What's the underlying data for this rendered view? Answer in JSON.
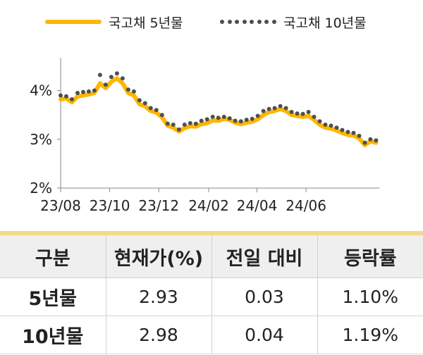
{
  "legend": {
    "series_5y": "국고채 5년물",
    "series_10y": "국고채 10년물"
  },
  "colors": {
    "series_5y": "#FFB600",
    "series_10y": "#4f4f4f",
    "table_accent": "#F3D98A",
    "header_bg": "#EFEFEF"
  },
  "chart_data": {
    "type": "line",
    "y_unit": "%",
    "ylim": [
      2,
      4.6
    ],
    "yticks": [
      "2%",
      "3%",
      "4%"
    ],
    "xticks": [
      "23/08",
      "23/10",
      "23/12",
      "24/02",
      "24/04",
      "24/06"
    ],
    "x_range": [
      "2023-08-01",
      "2024-08-31"
    ],
    "grid": false,
    "legend_position": "top",
    "series": [
      {
        "name": "국고채 5년물",
        "style": "solid",
        "x": [
          "2023-08-01",
          "2023-08-08",
          "2023-08-15",
          "2023-08-22",
          "2023-08-29",
          "2023-09-05",
          "2023-09-12",
          "2023-09-19",
          "2023-09-26",
          "2023-10-03",
          "2023-10-10",
          "2023-10-17",
          "2023-10-24",
          "2023-10-31",
          "2023-11-07",
          "2023-11-14",
          "2023-11-21",
          "2023-11-28",
          "2023-12-05",
          "2023-12-12",
          "2023-12-19",
          "2023-12-26",
          "2024-01-02",
          "2024-01-09",
          "2024-01-16",
          "2024-01-23",
          "2024-01-30",
          "2024-02-06",
          "2024-02-13",
          "2024-02-20",
          "2024-02-27",
          "2024-03-05",
          "2024-03-12",
          "2024-03-19",
          "2024-03-26",
          "2024-04-02",
          "2024-04-09",
          "2024-04-16",
          "2024-04-23",
          "2024-04-30",
          "2024-05-07",
          "2024-05-14",
          "2024-05-21",
          "2024-05-28",
          "2024-06-04",
          "2024-06-11",
          "2024-06-18",
          "2024-06-25",
          "2024-07-02",
          "2024-07-09",
          "2024-07-16",
          "2024-07-23",
          "2024-07-30",
          "2024-08-06",
          "2024-08-13",
          "2024-08-20",
          "2024-08-27"
        ],
        "values": [
          3.82,
          3.84,
          3.76,
          3.88,
          3.9,
          3.92,
          3.95,
          4.15,
          4.05,
          4.18,
          4.25,
          4.15,
          3.95,
          3.9,
          3.72,
          3.68,
          3.58,
          3.55,
          3.45,
          3.28,
          3.24,
          3.16,
          3.23,
          3.27,
          3.26,
          3.31,
          3.33,
          3.39,
          3.38,
          3.42,
          3.4,
          3.34,
          3.31,
          3.34,
          3.36,
          3.41,
          3.5,
          3.56,
          3.58,
          3.62,
          3.58,
          3.5,
          3.48,
          3.46,
          3.48,
          3.4,
          3.3,
          3.24,
          3.22,
          3.18,
          3.13,
          3.09,
          3.08,
          3.02,
          2.88,
          2.96,
          2.93
        ]
      },
      {
        "name": "국고채 10년물",
        "style": "dotted",
        "x": [
          "2023-08-01",
          "2023-08-08",
          "2023-08-15",
          "2023-08-22",
          "2023-08-29",
          "2023-09-05",
          "2023-09-12",
          "2023-09-19",
          "2023-09-26",
          "2023-10-03",
          "2023-10-10",
          "2023-10-17",
          "2023-10-24",
          "2023-10-31",
          "2023-11-07",
          "2023-11-14",
          "2023-11-21",
          "2023-11-28",
          "2023-12-05",
          "2023-12-12",
          "2023-12-19",
          "2023-12-26",
          "2024-01-02",
          "2024-01-09",
          "2024-01-16",
          "2024-01-23",
          "2024-01-30",
          "2024-02-06",
          "2024-02-13",
          "2024-02-20",
          "2024-02-27",
          "2024-03-05",
          "2024-03-12",
          "2024-03-19",
          "2024-03-26",
          "2024-04-02",
          "2024-04-09",
          "2024-04-16",
          "2024-04-23",
          "2024-04-30",
          "2024-05-07",
          "2024-05-14",
          "2024-05-21",
          "2024-05-28",
          "2024-06-04",
          "2024-06-11",
          "2024-06-18",
          "2024-06-25",
          "2024-07-02",
          "2024-07-09",
          "2024-07-16",
          "2024-07-23",
          "2024-07-30",
          "2024-08-06",
          "2024-08-13",
          "2024-08-20",
          "2024-08-27"
        ],
        "values": [
          3.9,
          3.88,
          3.82,
          3.95,
          3.97,
          3.98,
          4.0,
          4.32,
          4.12,
          4.28,
          4.35,
          4.25,
          4.02,
          3.98,
          3.8,
          3.74,
          3.64,
          3.6,
          3.5,
          3.32,
          3.3,
          3.2,
          3.3,
          3.33,
          3.32,
          3.38,
          3.41,
          3.46,
          3.44,
          3.46,
          3.43,
          3.38,
          3.37,
          3.4,
          3.42,
          3.48,
          3.58,
          3.62,
          3.64,
          3.68,
          3.64,
          3.56,
          3.53,
          3.52,
          3.56,
          3.46,
          3.37,
          3.3,
          3.28,
          3.24,
          3.19,
          3.15,
          3.13,
          3.07,
          2.93,
          3.0,
          2.98
        ]
      }
    ]
  },
  "table": {
    "headers": [
      "구분",
      "현재가(%)",
      "전일 대비",
      "등락률"
    ],
    "rows": [
      {
        "name": "5년물",
        "price": "2.93",
        "change": "0.03",
        "rate": "1.10%"
      },
      {
        "name": "10년물",
        "price": "2.98",
        "change": "0.04",
        "rate": "1.19%"
      }
    ]
  }
}
